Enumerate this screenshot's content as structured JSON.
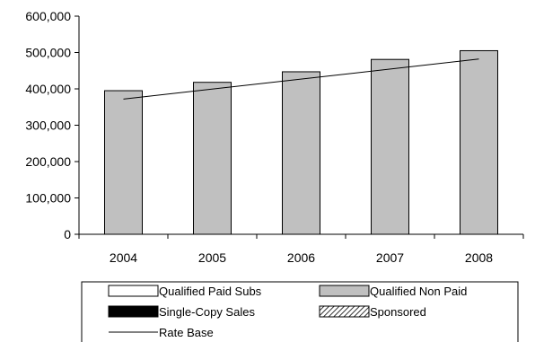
{
  "chart_data": {
    "type": "bar",
    "categories": [
      "2004",
      "2005",
      "2006",
      "2007",
      "2008"
    ],
    "series": [
      {
        "name": "Qualified Paid Subs",
        "kind": "bar",
        "values": [
          0,
          0,
          0,
          0,
          0
        ],
        "fill": "#ffffff",
        "pattern": "solid"
      },
      {
        "name": "Qualified Non Paid",
        "kind": "bar",
        "values": [
          395000,
          418000,
          447000,
          481000,
          505000
        ],
        "fill": "#c0c0c0",
        "pattern": "solid"
      },
      {
        "name": "Single-Copy Sales",
        "kind": "bar",
        "values": [
          0,
          0,
          0,
          0,
          0
        ],
        "fill": "#000000",
        "pattern": "solid"
      },
      {
        "name": "Sponsored",
        "kind": "bar",
        "values": [
          0,
          0,
          0,
          0,
          0
        ],
        "fill": "#c0c0c0",
        "pattern": "diagonal-hatch"
      },
      {
        "name": "Rate Base",
        "kind": "line",
        "values": [
          372000,
          null,
          null,
          null,
          482000
        ],
        "color": "#000000"
      }
    ],
    "ylim": [
      0,
      600000
    ],
    "yticks": [
      0,
      100000,
      200000,
      300000,
      400000,
      500000,
      600000
    ],
    "ytick_labels": [
      "0",
      "100,000",
      "200,000",
      "300,000",
      "400,000",
      "500,000",
      "600,000"
    ],
    "grid": false,
    "legend_position": "bottom",
    "title": "",
    "xlabel": "",
    "ylabel": ""
  }
}
